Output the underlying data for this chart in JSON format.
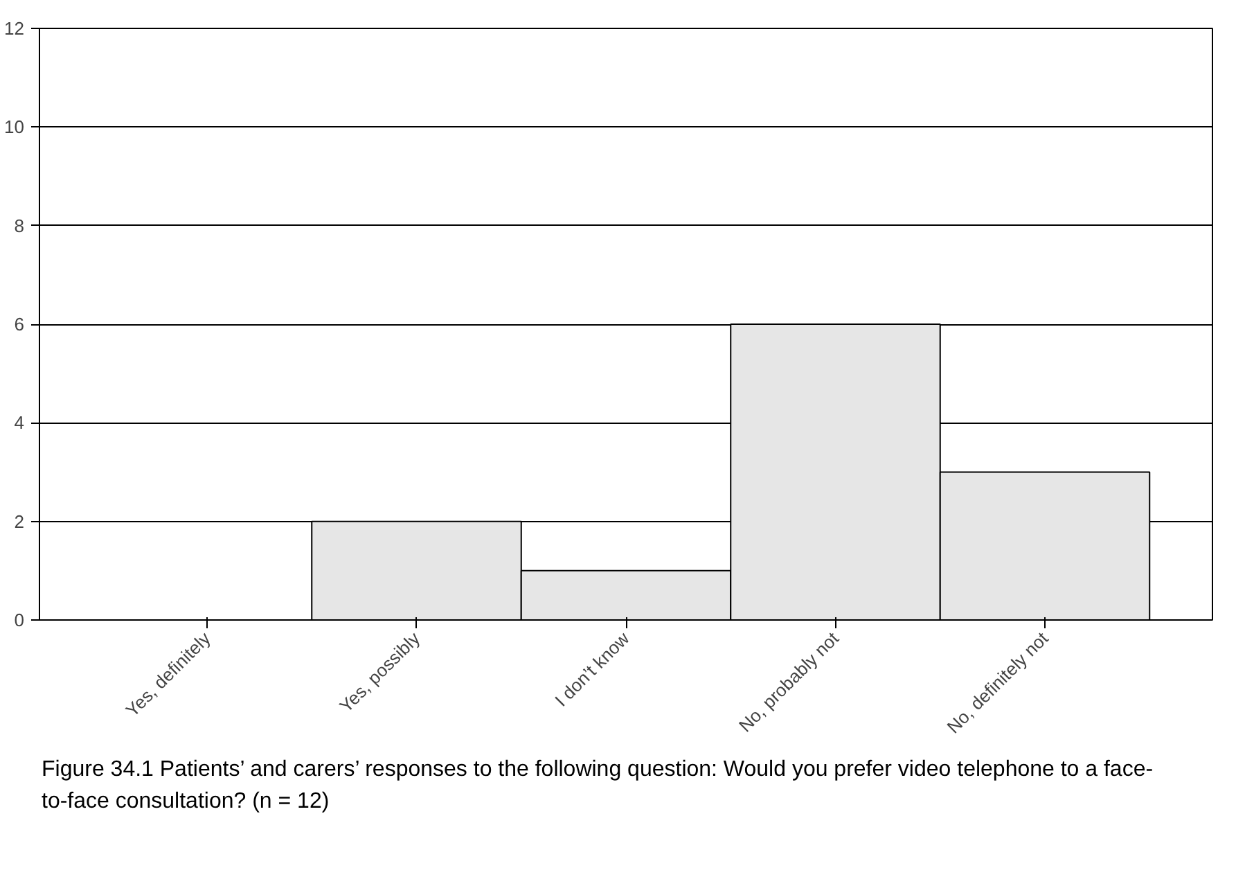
{
  "chart_data": {
    "type": "bar",
    "title": "Figure 34.1    Patients’ and carers’ responses to the following question: Would you prefer video telephone to a face-to-face consultation? (n = 12)",
    "categories": [
      "Yes, definitely",
      "Yes, possibly",
      "I don’t know",
      "No, probably not",
      "No, definitely not"
    ],
    "values": [
      0,
      2,
      1,
      6,
      3
    ],
    "color": "#e6e6e6",
    "ylim": [
      0,
      12
    ],
    "yticks": [
      0,
      2,
      4,
      6,
      8,
      10,
      12
    ],
    "grid": "y"
  }
}
